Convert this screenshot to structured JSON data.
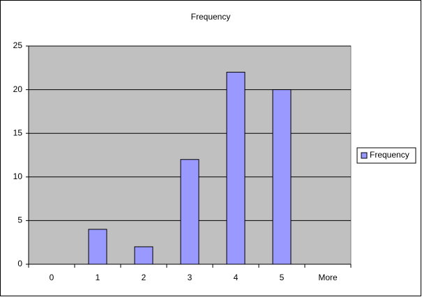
{
  "chart_data": {
    "type": "bar",
    "title": "Frequency",
    "categories": [
      "0",
      "1",
      "2",
      "3",
      "4",
      "5",
      "More"
    ],
    "series": [
      {
        "name": "Frequency",
        "color": "#9999ff",
        "values": [
          0,
          4,
          2,
          12,
          22,
          20,
          0
        ]
      }
    ],
    "ylim": [
      0,
      25
    ],
    "yticks": [
      0,
      5,
      10,
      15,
      20,
      25
    ],
    "grid": true,
    "legend": "right"
  }
}
